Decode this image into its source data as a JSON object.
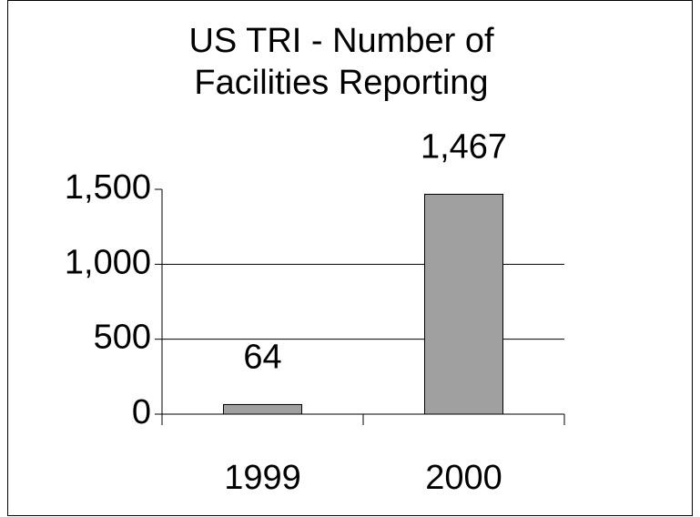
{
  "chart_data": {
    "type": "bar",
    "title": "US TRI - Number of Facilities Reporting",
    "categories": [
      "1999",
      "2000"
    ],
    "values": [
      64,
      1467
    ],
    "value_labels": [
      "64",
      "1,467"
    ],
    "color": "#a0a0a0",
    "ylim": [
      0,
      1500
    ],
    "yticks": [
      0,
      500,
      {
        "value": 1000,
        "label": "1,000"
      },
      {
        "value": 1500,
        "label": "1,500"
      }
    ],
    "grid": true
  }
}
